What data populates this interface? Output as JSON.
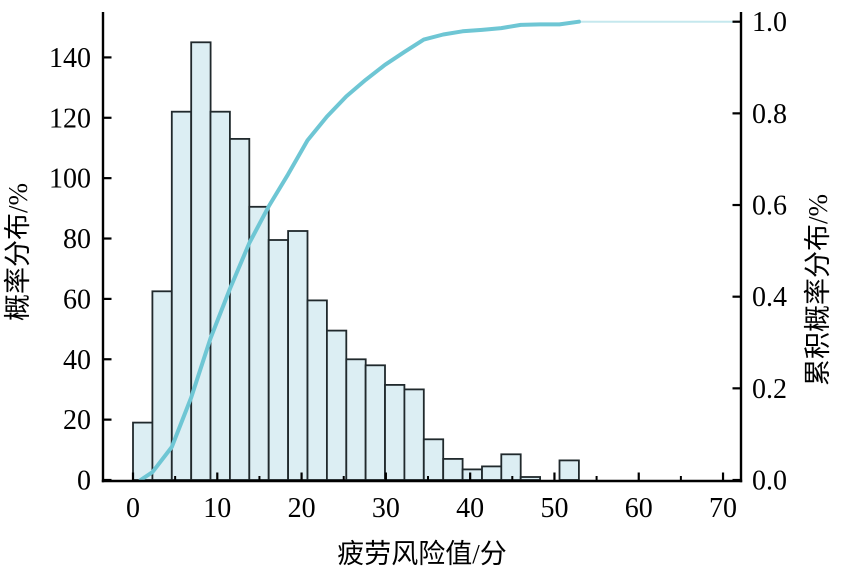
{
  "figure": {
    "kind": "histogram with cumulative probability curve",
    "background": "#ffffff"
  },
  "chart_data": {
    "type": "bar",
    "subtype": "histogram-with-cdf-line",
    "title": "",
    "xlabel": "疲劳风险值/分",
    "ylabel_left": "概率分布/%",
    "ylabel_right": "累积概率分布/%",
    "grid": "off",
    "legend_position": "none",
    "x_axis": {
      "range": [
        -3.6,
        72.1
      ],
      "major_ticks": [
        0,
        10,
        20,
        30,
        40,
        50,
        60,
        70
      ],
      "major_tick_labels": [
        "0",
        "10",
        "20",
        "30",
        "40",
        "50",
        "60",
        "70"
      ],
      "minor_ticks": [
        5,
        15,
        25,
        35,
        45,
        55,
        65
      ]
    },
    "y_left_axis": {
      "range": [
        0,
        155.4
      ],
      "ticks": [
        0,
        20,
        40,
        60,
        80,
        100,
        120,
        140
      ],
      "tick_labels": [
        "0",
        "20",
        "40",
        "60",
        "80",
        "100",
        "120",
        "140"
      ]
    },
    "y_right_axis": {
      "range": [
        0,
        1.0235
      ],
      "ticks": [
        0,
        0.2,
        0.4,
        0.6,
        0.8,
        1.0
      ],
      "tick_labels": [
        "0.0",
        "0.2",
        "0.4",
        "0.6",
        "0.8",
        "1.0"
      ]
    },
    "histogram": {
      "bin_start": 0,
      "bin_width": 2.3,
      "values": [
        19,
        62.5,
        122,
        145,
        122,
        113,
        90.5,
        79.5,
        82.5,
        59.5,
        49.5,
        40,
        38,
        31.5,
        30,
        13.5,
        7,
        3.5,
        4.5,
        8.5,
        1,
        0,
        6.5
      ]
    },
    "cdf": {
      "x": [
        0.9,
        2.3,
        4.6,
        6.9,
        9.2,
        11.5,
        13.8,
        16.1,
        18.4,
        20.7,
        23.0,
        25.3,
        27.6,
        29.9,
        32.2,
        34.5,
        36.8,
        39.1,
        41.4,
        43.7,
        46.0,
        48.3,
        50.6,
        52.9
      ],
      "y": [
        0,
        0.017,
        0.072,
        0.18,
        0.309,
        0.417,
        0.517,
        0.597,
        0.667,
        0.741,
        0.793,
        0.837,
        0.873,
        0.906,
        0.934,
        0.961,
        0.972,
        0.979,
        0.982,
        0.986,
        0.993,
        0.994,
        0.994,
        1.0
      ],
      "tail_x": [
        52.9,
        72.0
      ],
      "tail_y": [
        1.0,
        1.0
      ]
    },
    "colors": {
      "bar_fill": "#dceef3",
      "bar_edge": "#20292c",
      "cdf_line": "#6ec6d4",
      "axis": "#000000"
    }
  }
}
